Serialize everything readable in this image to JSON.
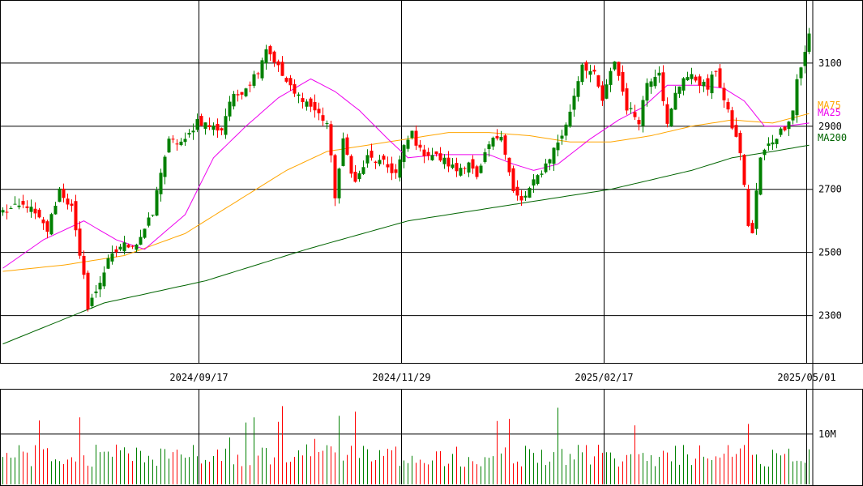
{
  "chart_data": {
    "type": "candlestick",
    "price_axis": {
      "ylim": [
        2150,
        3300
      ],
      "ticks": [
        2300,
        2500,
        2700,
        2900,
        3100
      ],
      "tick_labels": [
        "2300",
        "2500",
        "2700",
        "2900",
        "3100"
      ]
    },
    "volume_axis": {
      "ylim": [
        0,
        19000000
      ],
      "ticks": [
        10000000
      ],
      "tick_labels": [
        "10M"
      ]
    },
    "date_labels": [
      {
        "index": 49,
        "text": "2024/09/17"
      },
      {
        "index": 99,
        "text": "2024/11/29"
      },
      {
        "index": 149,
        "text": "2025/02/17"
      },
      {
        "index": 199,
        "text": "2025/05/01"
      }
    ],
    "moving_averages": [
      {
        "name": "MA75",
        "color": "#ffa500"
      },
      {
        "name": "MA25",
        "color": "#ee00ee"
      },
      {
        "name": "MA200",
        "color": "#006400"
      }
    ],
    "colors": {
      "up": "#008000",
      "down": "#ff0000",
      "grid": "#000000"
    },
    "close_anchors": [
      [
        0,
        2630
      ],
      [
        6,
        2650
      ],
      [
        11,
        2570
      ],
      [
        14,
        2700
      ],
      [
        17,
        2640
      ],
      [
        19,
        2480
      ],
      [
        20,
        2440
      ],
      [
        21,
        2320
      ],
      [
        23,
        2380
      ],
      [
        26,
        2470
      ],
      [
        29,
        2520
      ],
      [
        33,
        2530
      ],
      [
        37,
        2620
      ],
      [
        39,
        2760
      ],
      [
        41,
        2850
      ],
      [
        45,
        2850
      ],
      [
        48,
        2920
      ],
      [
        51,
        2900
      ],
      [
        54,
        2890
      ],
      [
        56,
        2980
      ],
      [
        58,
        3000
      ],
      [
        61,
        3040
      ],
      [
        63,
        3080
      ],
      [
        65,
        3150
      ],
      [
        67,
        3110
      ],
      [
        69,
        3060
      ],
      [
        72,
        3000
      ],
      [
        74,
        2990
      ],
      [
        77,
        2950
      ],
      [
        80,
        2910
      ],
      [
        82,
        2680
      ],
      [
        84,
        2850
      ],
      [
        87,
        2720
      ],
      [
        90,
        2800
      ],
      [
        94,
        2780
      ],
      [
        97,
        2750
      ],
      [
        99,
        2830
      ],
      [
        101,
        2880
      ],
      [
        103,
        2820
      ],
      [
        106,
        2810
      ],
      [
        109,
        2790
      ],
      [
        112,
        2760
      ],
      [
        115,
        2790
      ],
      [
        117,
        2730
      ],
      [
        120,
        2840
      ],
      [
        123,
        2880
      ],
      [
        126,
        2690
      ],
      [
        128,
        2660
      ],
      [
        131,
        2720
      ],
      [
        134,
        2780
      ],
      [
        137,
        2850
      ],
      [
        139,
        2900
      ],
      [
        141,
        3000
      ],
      [
        143,
        3100
      ],
      [
        146,
        3060
      ],
      [
        148,
        2980
      ],
      [
        151,
        3110
      ],
      [
        154,
        2960
      ],
      [
        157,
        2920
      ],
      [
        159,
        3040
      ],
      [
        162,
        3080
      ],
      [
        164,
        2900
      ],
      [
        166,
        3000
      ],
      [
        168,
        3060
      ],
      [
        171,
        3050
      ],
      [
        174,
        3020
      ],
      [
        176,
        3080
      ],
      [
        178,
        2980
      ],
      [
        180,
        2900
      ],
      [
        182,
        2820
      ],
      [
        184,
        2590
      ],
      [
        185,
        2560
      ],
      [
        186,
        2690
      ],
      [
        187,
        2800
      ],
      [
        189,
        2840
      ],
      [
        191,
        2870
      ],
      [
        193,
        2900
      ],
      [
        195,
        2950
      ],
      [
        196,
        3050
      ],
      [
        198,
        3130
      ],
      [
        199,
        3190
      ]
    ],
    "ma25_anchors": [
      [
        0,
        2450
      ],
      [
        10,
        2540
      ],
      [
        20,
        2600
      ],
      [
        28,
        2540
      ],
      [
        35,
        2510
      ],
      [
        45,
        2620
      ],
      [
        52,
        2800
      ],
      [
        60,
        2900
      ],
      [
        68,
        2990
      ],
      [
        76,
        3050
      ],
      [
        82,
        3010
      ],
      [
        88,
        2950
      ],
      [
        95,
        2860
      ],
      [
        100,
        2800
      ],
      [
        108,
        2810
      ],
      [
        115,
        2810
      ],
      [
        120,
        2810
      ],
      [
        126,
        2780
      ],
      [
        131,
        2760
      ],
      [
        137,
        2780
      ],
      [
        145,
        2860
      ],
      [
        152,
        2920
      ],
      [
        158,
        2960
      ],
      [
        164,
        3030
      ],
      [
        172,
        3030
      ],
      [
        178,
        3020
      ],
      [
        183,
        2980
      ],
      [
        188,
        2900
      ],
      [
        193,
        2900
      ],
      [
        199,
        2910
      ]
    ],
    "ma75_anchors": [
      [
        0,
        2440
      ],
      [
        15,
        2460
      ],
      [
        30,
        2490
      ],
      [
        45,
        2560
      ],
      [
        60,
        2680
      ],
      [
        70,
        2760
      ],
      [
        80,
        2820
      ],
      [
        90,
        2840
      ],
      [
        100,
        2860
      ],
      [
        110,
        2880
      ],
      [
        120,
        2880
      ],
      [
        130,
        2870
      ],
      [
        140,
        2850
      ],
      [
        150,
        2850
      ],
      [
        160,
        2870
      ],
      [
        170,
        2900
      ],
      [
        180,
        2920
      ],
      [
        190,
        2910
      ],
      [
        199,
        2940
      ]
    ],
    "ma200_anchors": [
      [
        0,
        2210
      ],
      [
        25,
        2340
      ],
      [
        50,
        2410
      ],
      [
        75,
        2510
      ],
      [
        100,
        2600
      ],
      [
        125,
        2650
      ],
      [
        150,
        2700
      ],
      [
        170,
        2760
      ],
      [
        180,
        2800
      ],
      [
        190,
        2820
      ],
      [
        199,
        2840
      ]
    ]
  }
}
